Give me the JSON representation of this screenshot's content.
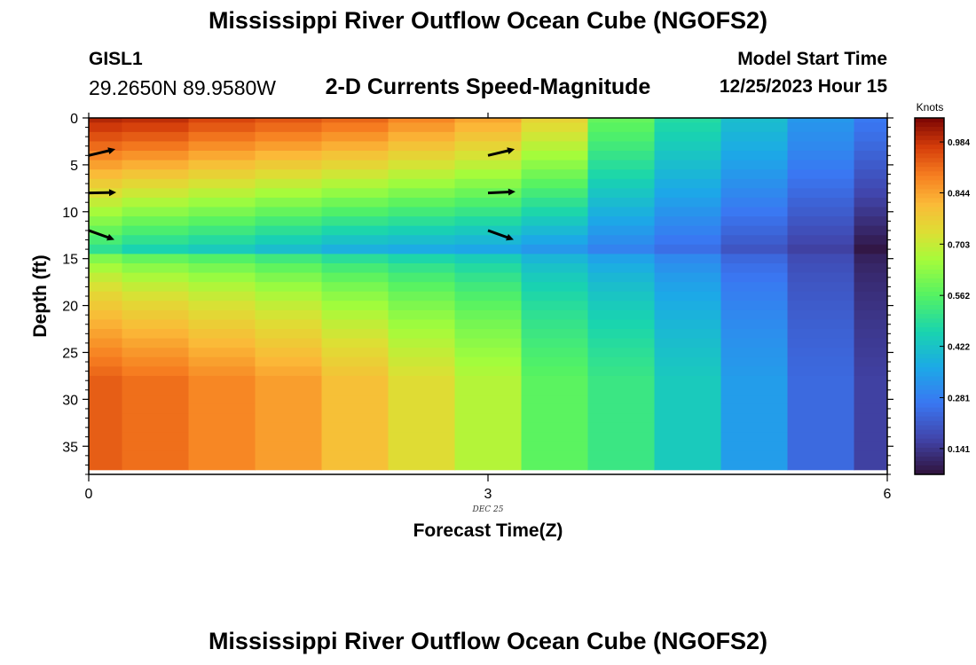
{
  "header": {
    "title": "Mississippi River Outflow Ocean Cube (NGOFS2)",
    "station_id": "GISL1",
    "station_coords": "29.2650N  89.9580W",
    "plot_title": "2-D Currents Speed-Magnitude",
    "start_time_label": "Model Start Time",
    "start_time_value": "12/25/2023 Hour 15"
  },
  "footer": {
    "title": "Mississippi River Outflow Ocean Cube (NGOFS2)"
  },
  "chart_data": {
    "type": "heatmap",
    "xlabel": "Forecast Time(Z)",
    "ylabel": "Depth (ft)",
    "date_label": "DEC 25",
    "xlim": [
      0,
      6
    ],
    "ylim": [
      0,
      38
    ],
    "y_inverted": true,
    "x_ticks": [
      "0",
      "3",
      "6"
    ],
    "y_ticks": [
      "0",
      "5",
      "10",
      "15",
      "20",
      "25",
      "30",
      "35"
    ],
    "time_columns": [
      0.0,
      0.5,
      1.0,
      1.5,
      2.0,
      2.5,
      3.0,
      3.5,
      4.0,
      4.5,
      5.0,
      5.5,
      6.0
    ],
    "depth_layers": [
      0,
      1,
      2,
      3,
      4,
      5,
      6,
      7,
      8,
      9,
      10,
      11,
      12,
      13,
      14,
      15,
      16,
      17,
      18,
      19,
      20,
      21,
      22,
      23,
      24,
      25,
      26,
      27,
      28,
      29,
      30,
      31,
      32,
      33,
      34,
      35,
      36,
      37
    ],
    "colorbar": {
      "label": "Knots",
      "ticks": [
        "0.984",
        "0.844",
        "0.703",
        "0.562",
        "0.422",
        "0.281",
        "0.141"
      ],
      "min": 0.07,
      "max": 1.05
    },
    "legend_placement": "right",
    "arrows": [
      {
        "time": 0,
        "depth": 4,
        "dx": 1,
        "dy": -0.25
      },
      {
        "time": 0,
        "depth": 8,
        "dx": 1,
        "dy": -0.02
      },
      {
        "time": 0,
        "depth": 12,
        "dx": 1,
        "dy": 0.38
      },
      {
        "time": 3,
        "depth": 4,
        "dx": 1,
        "dy": -0.25
      },
      {
        "time": 3,
        "depth": 8,
        "dx": 1,
        "dy": -0.05
      },
      {
        "time": 3,
        "depth": 12,
        "dx": 1,
        "dy": 0.38
      }
    ],
    "values_note_free": true,
    "profile_top": [
      1.0,
      0.99,
      0.96,
      0.94,
      0.92,
      0.88,
      0.84,
      0.76,
      0.58,
      0.48,
      0.41,
      0.33,
      0.27
    ],
    "profile_mid": [
      0.5,
      0.46,
      0.44,
      0.41,
      0.38,
      0.37,
      0.36,
      0.33,
      0.29,
      0.25,
      0.2,
      0.16,
      0.08
    ],
    "profile_bottom": [
      0.93,
      0.91,
      0.88,
      0.85,
      0.8,
      0.74,
      0.68,
      0.57,
      0.52,
      0.44,
      0.34,
      0.24,
      0.16
    ],
    "mid_depth": 14
  }
}
